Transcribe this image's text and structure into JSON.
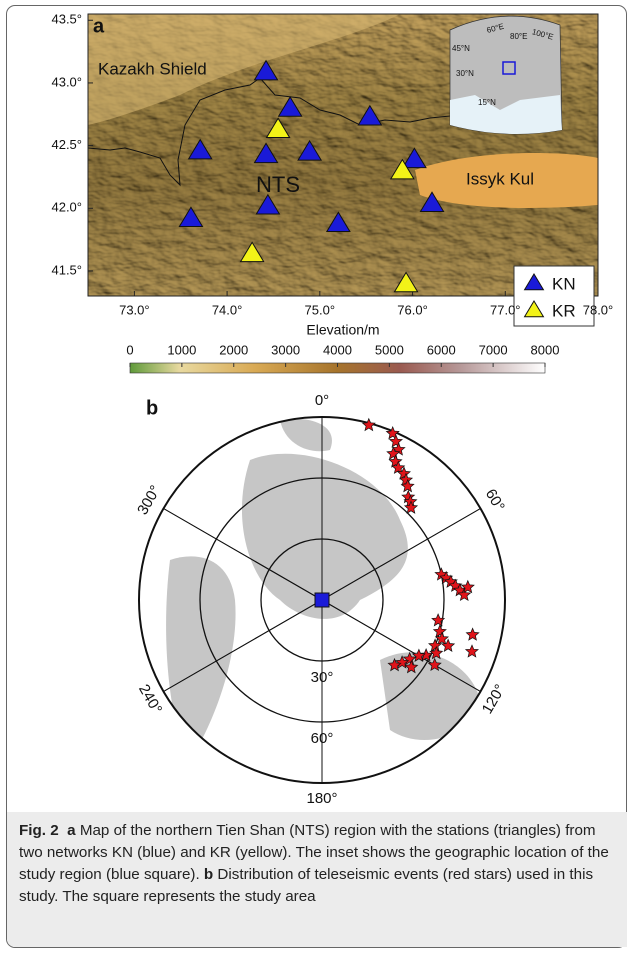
{
  "panel_a": {
    "label": "a",
    "xlabel": "Elevation/m",
    "xlim": [
      72.5,
      78.0
    ],
    "ylim": [
      41.3,
      43.55
    ],
    "xticks": [
      {
        "value": 73.0,
        "label": "73.0°"
      },
      {
        "value": 74.0,
        "label": "74.0°"
      },
      {
        "value": 75.0,
        "label": "75.0°"
      },
      {
        "value": 76.0,
        "label": "76.0°"
      },
      {
        "value": 77.0,
        "label": "77.0°"
      },
      {
        "value": 78.0,
        "label": "78.0°"
      }
    ],
    "yticks": [
      {
        "value": 41.5,
        "label": "41.5°"
      },
      {
        "value": 42.0,
        "label": "42.0°"
      },
      {
        "value": 42.5,
        "label": "42.5°"
      },
      {
        "value": 43.0,
        "label": "43.0°"
      },
      {
        "value": 43.5,
        "label": "43.5°"
      }
    ],
    "place_labels": [
      "Kazakh Shield",
      "NTS",
      "Issyk Kul"
    ],
    "inset_labels": [
      "60°E",
      "80°E",
      "100°E",
      "45°N",
      "30°N",
      "15°N"
    ],
    "series": [
      {
        "name": "KN",
        "color": "#1a1ad8",
        "lon": [
          74.42,
          74.68,
          73.71,
          74.42,
          74.89,
          75.54,
          76.02,
          76.21,
          75.2,
          74.44,
          73.61
        ],
        "lat": [
          43.09,
          42.8,
          42.46,
          42.43,
          42.45,
          42.73,
          42.39,
          42.04,
          41.88,
          42.02,
          41.92
        ]
      },
      {
        "name": "KR",
        "color": "#f2f218",
        "lon": [
          74.55,
          75.89,
          74.27,
          75.93
        ],
        "lat": [
          42.63,
          42.3,
          41.64,
          41.4
        ]
      }
    ],
    "colorbar": {
      "lim": [
        0,
        8000
      ],
      "ticks": [
        0,
        1000,
        2000,
        3000,
        4000,
        5000,
        6000,
        7000,
        8000
      ]
    }
  },
  "panel_b": {
    "label": "b",
    "distance_lim": [
      0,
      90
    ],
    "azimuth_labels": [
      {
        "value": 0,
        "label": "0°"
      },
      {
        "value": 60,
        "label": "60°"
      },
      {
        "value": 120,
        "label": "120°"
      },
      {
        "value": 180,
        "label": "180°"
      },
      {
        "value": 240,
        "label": "240°"
      },
      {
        "value": 300,
        "label": "300°"
      }
    ],
    "distance_labels": [
      {
        "value": 30,
        "label": "30°"
      },
      {
        "value": 60,
        "label": "60°"
      }
    ],
    "events": {
      "azimuth": [
        15,
        23,
        25,
        27,
        26,
        28,
        30,
        33,
        35,
        37,
        40,
        42,
        44,
        78,
        80,
        82,
        84,
        86,
        88,
        85,
        100,
        105,
        108,
        112,
        115,
        118,
        120,
        124,
        128,
        132,
        127,
        120,
        110,
        103,
        109
      ],
      "distance": [
        89,
        89,
        86,
        83,
        80,
        77,
        75,
        74,
        72,
        70,
        66,
        65,
        63,
        60,
        62,
        64,
        66,
        68,
        70,
        72,
        58,
        60,
        62,
        60,
        62,
        58,
        55,
        52,
        50,
        48,
        55,
        64,
        66,
        76,
        78
      ]
    }
  },
  "caption": {
    "fig": "Fig. 2",
    "a": "a",
    "a_text": "Map of the northern Tien Shan (NTS) region with the stations (triangles) from two networks KN (blue) and KR (yellow). The inset shows the geographic location of the study region (blue square).",
    "b": "b",
    "b_text": "Distribution of teleseismic events (red stars) used in this study. The square represents the study area"
  }
}
